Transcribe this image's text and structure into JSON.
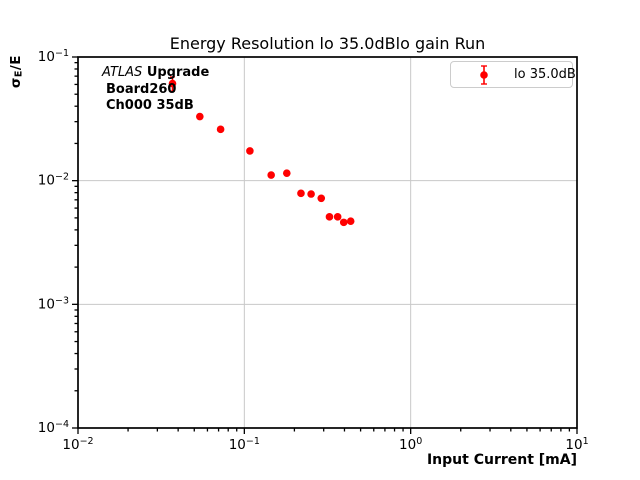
{
  "figure": {
    "title": "Energy Resolution lo 35.0dBlo gain Run",
    "xlabel": "Input Current [mA]",
    "ylabel_sigma": "σ",
    "ylabel_sub": "E",
    "ylabel_rest": "/E",
    "background_color": "#ffffff"
  },
  "annotation": {
    "experiment": "ATLAS",
    "tag": "Upgrade",
    "board": "Board260",
    "channel": "Ch000 35dB"
  },
  "legend": {
    "entries": [
      {
        "label": "lo 35.0dB",
        "color": "#ff0000",
        "marker": "errorbar-circle"
      }
    ]
  },
  "chart_data": {
    "type": "scatter",
    "title": "Energy Resolution lo 35.0dBlo gain Run",
    "xlabel": "Input Current [mA]",
    "ylabel": "σ_E/E",
    "xscale": "log",
    "yscale": "log",
    "xlim": [
      0.01,
      10
    ],
    "ylim": [
      0.0001,
      0.1
    ],
    "grid": true,
    "grid_color": "#c8c8c8",
    "axis_color": "#000000",
    "legend_position": "upper right",
    "x_tick_exponents": [
      -2,
      -1,
      0,
      1
    ],
    "y_tick_exponents": [
      -1,
      -2,
      -3,
      -4
    ],
    "series": [
      {
        "name": "lo 35.0dB",
        "color": "#ff0000",
        "marker": "circle",
        "points": [
          {
            "x": 0.037,
            "y": 0.061,
            "yerr": 0.008
          },
          {
            "x": 0.054,
            "y": 0.033,
            "yerr": 0.001
          },
          {
            "x": 0.072,
            "y": 0.026,
            "yerr": 0.0008
          },
          {
            "x": 0.108,
            "y": 0.0174,
            "yerr": 0.0005
          },
          {
            "x": 0.145,
            "y": 0.0111,
            "yerr": 0.0003
          },
          {
            "x": 0.18,
            "y": 0.0115,
            "yerr": 0.0003
          },
          {
            "x": 0.219,
            "y": 0.0079,
            "yerr": 0.0002
          },
          {
            "x": 0.252,
            "y": 0.0078,
            "yerr": 0.0002
          },
          {
            "x": 0.29,
            "y": 0.0072,
            "yerr": 0.0002
          },
          {
            "x": 0.325,
            "y": 0.0051,
            "yerr": 0.00015
          },
          {
            "x": 0.364,
            "y": 0.0051,
            "yerr": 0.00015
          },
          {
            "x": 0.396,
            "y": 0.0046,
            "yerr": 0.00015
          },
          {
            "x": 0.436,
            "y": 0.0047,
            "yerr": 0.00015
          }
        ]
      }
    ]
  }
}
